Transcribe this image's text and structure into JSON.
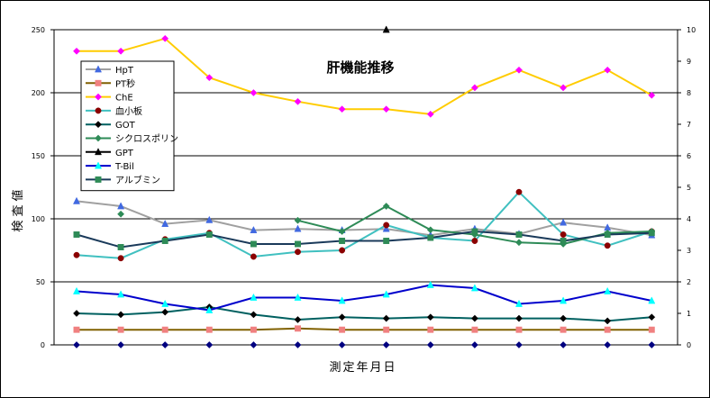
{
  "chart_data": {
    "type": "line",
    "title": "肝機能推移",
    "xlabel": "測定年月日",
    "ylabel": "検査値",
    "categories": [
      "",
      "",
      "",
      "",
      "",
      "",
      "",
      "",
      "",
      "",
      "",
      "",
      "",
      ""
    ],
    "ylim": [
      0,
      250
    ],
    "y_ticks": [
      "0",
      "50",
      "100",
      "150",
      "200",
      "250"
    ],
    "y2lim": [
      0,
      10
    ],
    "y2_ticks": [
      "0",
      "1",
      "2",
      "3",
      "4",
      "5",
      "6",
      "7",
      "8",
      "9",
      "10"
    ],
    "grid": "horizontal",
    "legend_position": "left",
    "series": [
      {
        "name": "HpT",
        "axis": "left",
        "color": "#4169e1",
        "marker": "triangle",
        "line_color": "#a0a0a0",
        "values": [
          114,
          110,
          96,
          99,
          91,
          92,
          91,
          92,
          87,
          92,
          88,
          97,
          93,
          87
        ]
      },
      {
        "name": "PT秒",
        "axis": "left",
        "color": "#f08080",
        "marker": "square",
        "line_color": "#806000",
        "values": [
          12,
          12,
          12,
          12,
          12,
          13,
          12,
          12,
          12,
          12,
          12,
          12,
          12,
          12
        ]
      },
      {
        "name": "ChE",
        "axis": "left",
        "color": "#ff00ff",
        "marker": "diamond",
        "line_color": "#ffcc00",
        "values": [
          233,
          233,
          243,
          212,
          200,
          193,
          187,
          187,
          183,
          204,
          218,
          204,
          218,
          198
        ]
      },
      {
        "name": "血小板",
        "axis": "right",
        "color": "#8b0000",
        "marker": "circle",
        "line_color": "#40c0c0",
        "values": [
          2.85,
          2.75,
          3.35,
          3.55,
          2.8,
          2.95,
          3.0,
          3.8,
          3.4,
          3.3,
          4.85,
          3.5,
          3.15,
          3.6
        ]
      },
      {
        "name": "GOT",
        "axis": "left",
        "color": "#000000",
        "marker": "diamond",
        "line_color": "#006060",
        "values": [
          25,
          24,
          26,
          30,
          24,
          20,
          22,
          21,
          22,
          21,
          21,
          21,
          19,
          22
        ]
      },
      {
        "name": "シクロスポリン",
        "axis": "right",
        "color": "#2e8b57",
        "marker": "diamond",
        "line_color": "#2e8b57",
        "values": [
          null,
          4.15,
          null,
          null,
          null,
          3.95,
          3.6,
          4.4,
          3.65,
          3.5,
          3.25,
          3.2,
          3.55,
          3.6
        ]
      },
      {
        "name": "GPT",
        "axis": "right",
        "color": "#000000",
        "marker": "triangle",
        "line_color": "#000000",
        "values": [
          null,
          null,
          null,
          null,
          null,
          null,
          null,
          10,
          null,
          null,
          null,
          null,
          null,
          null
        ]
      },
      {
        "name": "T-Bil",
        "axis": "right",
        "color": "#00ffff",
        "marker": "triangle",
        "line_color": "#0000cc",
        "values": [
          1.7,
          1.6,
          1.3,
          1.1,
          1.5,
          1.5,
          1.4,
          1.6,
          1.9,
          1.8,
          1.3,
          1.4,
          1.7,
          1.4
        ]
      },
      {
        "name": "アルブミン",
        "axis": "right",
        "color": "#2e8b57",
        "marker": "square",
        "line_color": "#1a3a5a",
        "values": [
          3.5,
          3.1,
          3.3,
          3.5,
          3.2,
          3.2,
          3.3,
          3.3,
          3.4,
          3.6,
          3.5,
          3.3,
          3.5,
          3.55
        ]
      },
      {
        "name": "",
        "axis": "left",
        "color": "#000080",
        "marker": "diamond",
        "line_color": "none",
        "values": [
          0,
          0,
          0,
          0,
          0,
          0,
          0,
          0,
          0,
          0,
          0,
          0,
          0,
          0
        ]
      }
    ]
  }
}
